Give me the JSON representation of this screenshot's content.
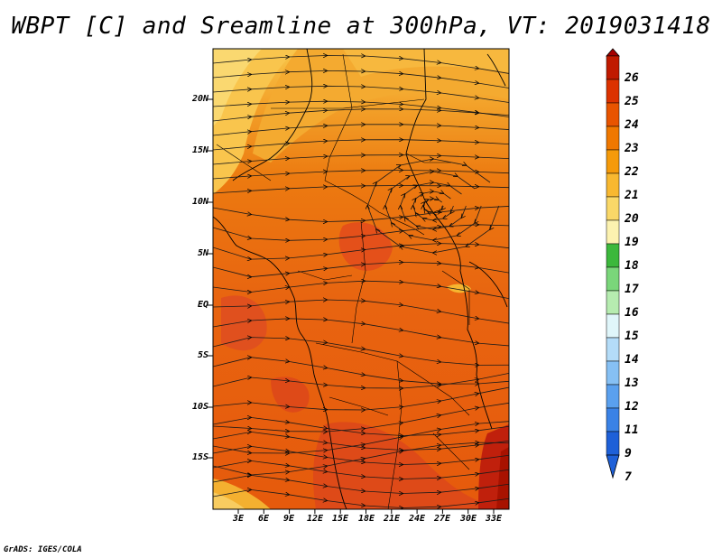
{
  "title": "WBPT [C] and Sreamline at 300hPa, VT: 2019031418",
  "credit": "GrADS: IGES/COLA",
  "map": {
    "variable": "WBPT [C]",
    "level": "300hPa",
    "valid_time": "2019031418",
    "lat_labels": [
      "20N",
      "15N",
      "10N",
      "5N",
      "EQ",
      "5S",
      "10S",
      "15S"
    ],
    "lon_labels": [
      "3E",
      "6E",
      "9E",
      "12E",
      "15E",
      "18E",
      "21E",
      "24E",
      "27E",
      "30E",
      "33E"
    ]
  },
  "colorbar": {
    "levels": [
      "26",
      "25",
      "24",
      "23",
      "22",
      "21",
      "20",
      "19",
      "18",
      "17",
      "16",
      "15",
      "14",
      "13",
      "12",
      "11",
      "9",
      "7"
    ],
    "colors": {
      "c26": "#a50000",
      "c25": "#c01a00",
      "c24": "#dc3200",
      "c23": "#e85400",
      "c22": "#f07800",
      "c21": "#f59a0a",
      "c20": "#f8b830",
      "c19": "#fad868",
      "c18": "#fcf2b0",
      "c17": "#3cb83c",
      "c16": "#7ad67a",
      "c15": "#b6ecb0",
      "c14": "#e0f6fa",
      "c13": "#b4dcf8",
      "c12": "#86c0f4",
      "c11": "#5aa0ee",
      "c9": "#3a82e6",
      "c7": "#1e60d8"
    }
  }
}
